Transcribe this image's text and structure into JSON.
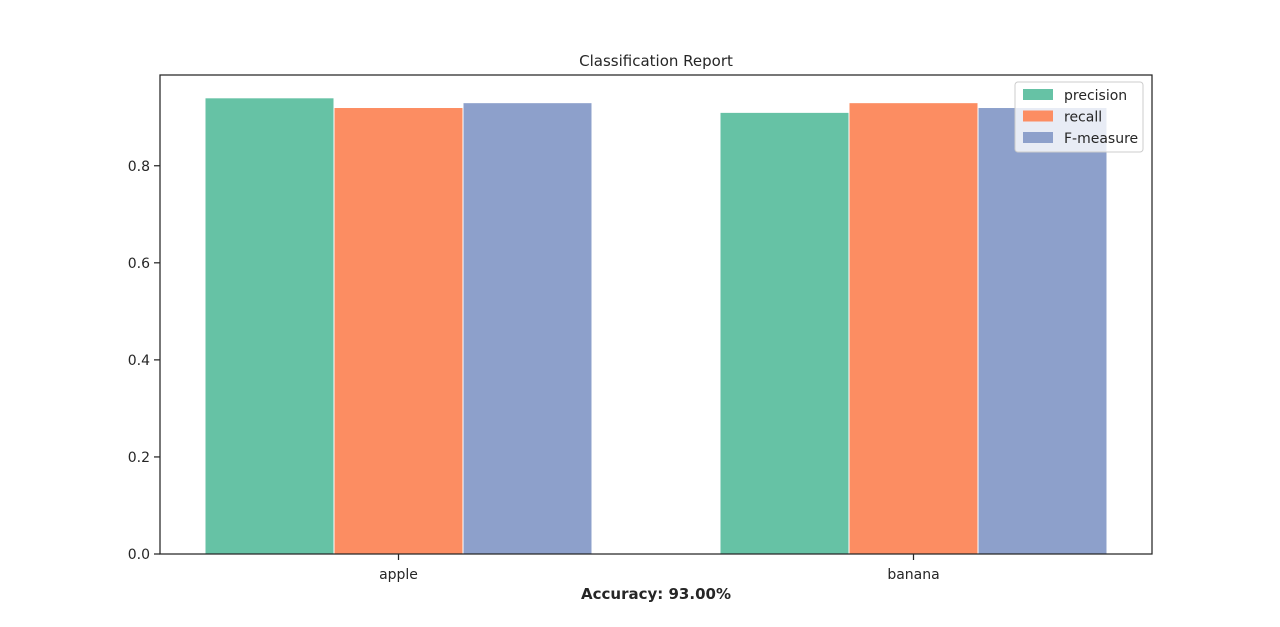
{
  "chart_data": {
    "type": "bar",
    "title": "Classification Report",
    "xlabel": "Accuracy: 93.00%",
    "ylabel": "",
    "categories": [
      "apple",
      "banana"
    ],
    "series": [
      {
        "name": "precision",
        "values": [
          0.94,
          0.91
        ],
        "color": "#66c2a5"
      },
      {
        "name": "recall",
        "values": [
          0.92,
          0.93
        ],
        "color": "#fc8d62"
      },
      {
        "name": "F-measure",
        "values": [
          0.93,
          0.92
        ],
        "color": "#8da0cb"
      }
    ],
    "ylim": [
      0,
      0.987
    ],
    "yticks": [
      0.0,
      0.2,
      0.4,
      0.6,
      0.8
    ],
    "ytick_labels": [
      "0.0",
      "0.2",
      "0.4",
      "0.6",
      "0.8"
    ],
    "grid": false,
    "legend_position": "top-right"
  }
}
